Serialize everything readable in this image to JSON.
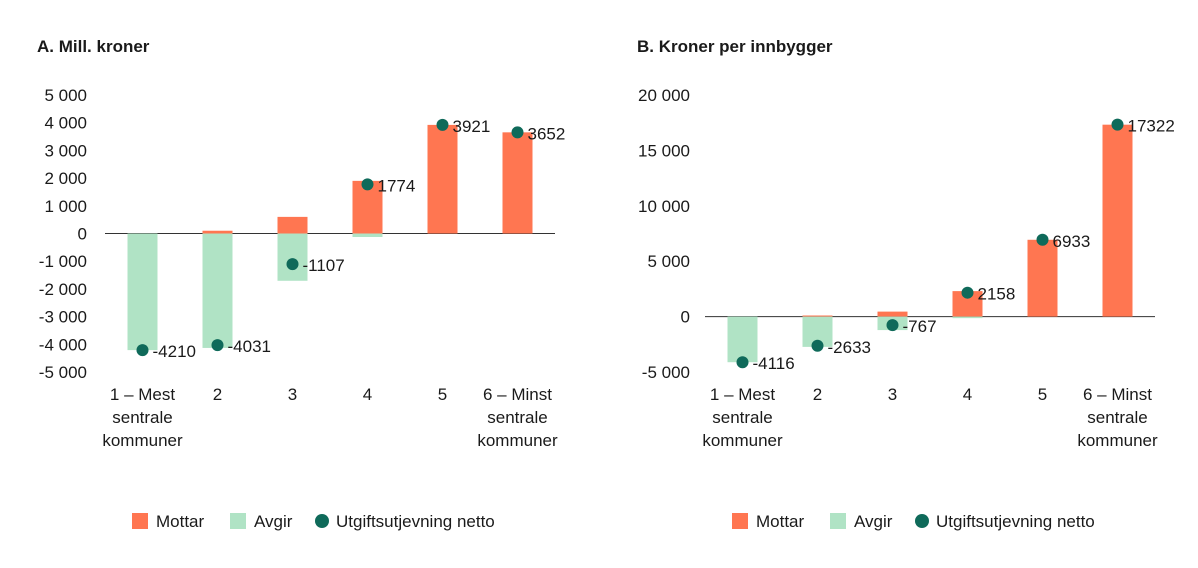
{
  "colors": {
    "mottar": "#ff7651",
    "avgir": "#b0e3c5",
    "netto": "#0f6a5a",
    "axis": "#333333"
  },
  "legend": {
    "mottar": "Mottar",
    "avgir": "Avgir",
    "netto": "Utgiftsutjevning netto"
  },
  "chart_data": [
    {
      "type": "bar",
      "title": "A.  Mill. kroner",
      "categories": [
        [
          "1 – Mest",
          "sentrale",
          "kommuner"
        ],
        [
          "2"
        ],
        [
          "3"
        ],
        [
          "4"
        ],
        [
          "5"
        ],
        [
          "6 – Minst",
          "sentrale",
          "kommuner"
        ]
      ],
      "ylim": [
        -5000,
        5000
      ],
      "yticks": [
        5000,
        4000,
        3000,
        2000,
        1000,
        0,
        -1000,
        -2000,
        -3000,
        -4000,
        -5000
      ],
      "ytick_labels": [
        "5 000",
        "4 000",
        "3 000",
        "2 000",
        "1 000",
        "0",
        "-1 000",
        "-2 000",
        "-3 000",
        "-4 000",
        "-5 000"
      ],
      "series": [
        {
          "name": "Mottar",
          "values": [
            0,
            100,
            600,
            1900,
            3921,
            3652
          ]
        },
        {
          "name": "Avgir",
          "values": [
            -4210,
            -4131,
            -1707,
            -126,
            0,
            0
          ]
        },
        {
          "name": "Utgiftsutjevning netto",
          "values": [
            -4210,
            -4031,
            -1107,
            1774,
            3921,
            3652
          ]
        }
      ],
      "data_labels": [
        "-4210",
        "-4031",
        "-1107",
        "1774",
        "3921",
        "3652"
      ]
    },
    {
      "type": "bar",
      "title": "B.  Kroner per innbygger",
      "categories": [
        [
          "1 – Mest",
          "sentrale",
          "kommuner"
        ],
        [
          "2"
        ],
        [
          "3"
        ],
        [
          "4"
        ],
        [
          "5"
        ],
        [
          "6 – Minst",
          "sentrale",
          "kommuner"
        ]
      ],
      "ylim": [
        -5000,
        20000
      ],
      "yticks": [
        20000,
        15000,
        10000,
        5000,
        0,
        -5000
      ],
      "ytick_labels": [
        "20 000",
        "15 000",
        "10 000",
        "5 000",
        "0",
        "-5 000"
      ],
      "series": [
        {
          "name": "Mottar",
          "values": [
            0,
            100,
            450,
            2300,
            6933,
            17322
          ]
        },
        {
          "name": "Avgir",
          "values": [
            -4116,
            -2733,
            -1217,
            -140,
            0,
            0
          ]
        },
        {
          "name": "Utgiftsutjevning netto",
          "values": [
            -4116,
            -2633,
            -767,
            2158,
            6933,
            17322
          ]
        }
      ],
      "data_labels": [
        "-4116",
        "-2633",
        "-767",
        "2158",
        "6933",
        "17322"
      ]
    }
  ]
}
